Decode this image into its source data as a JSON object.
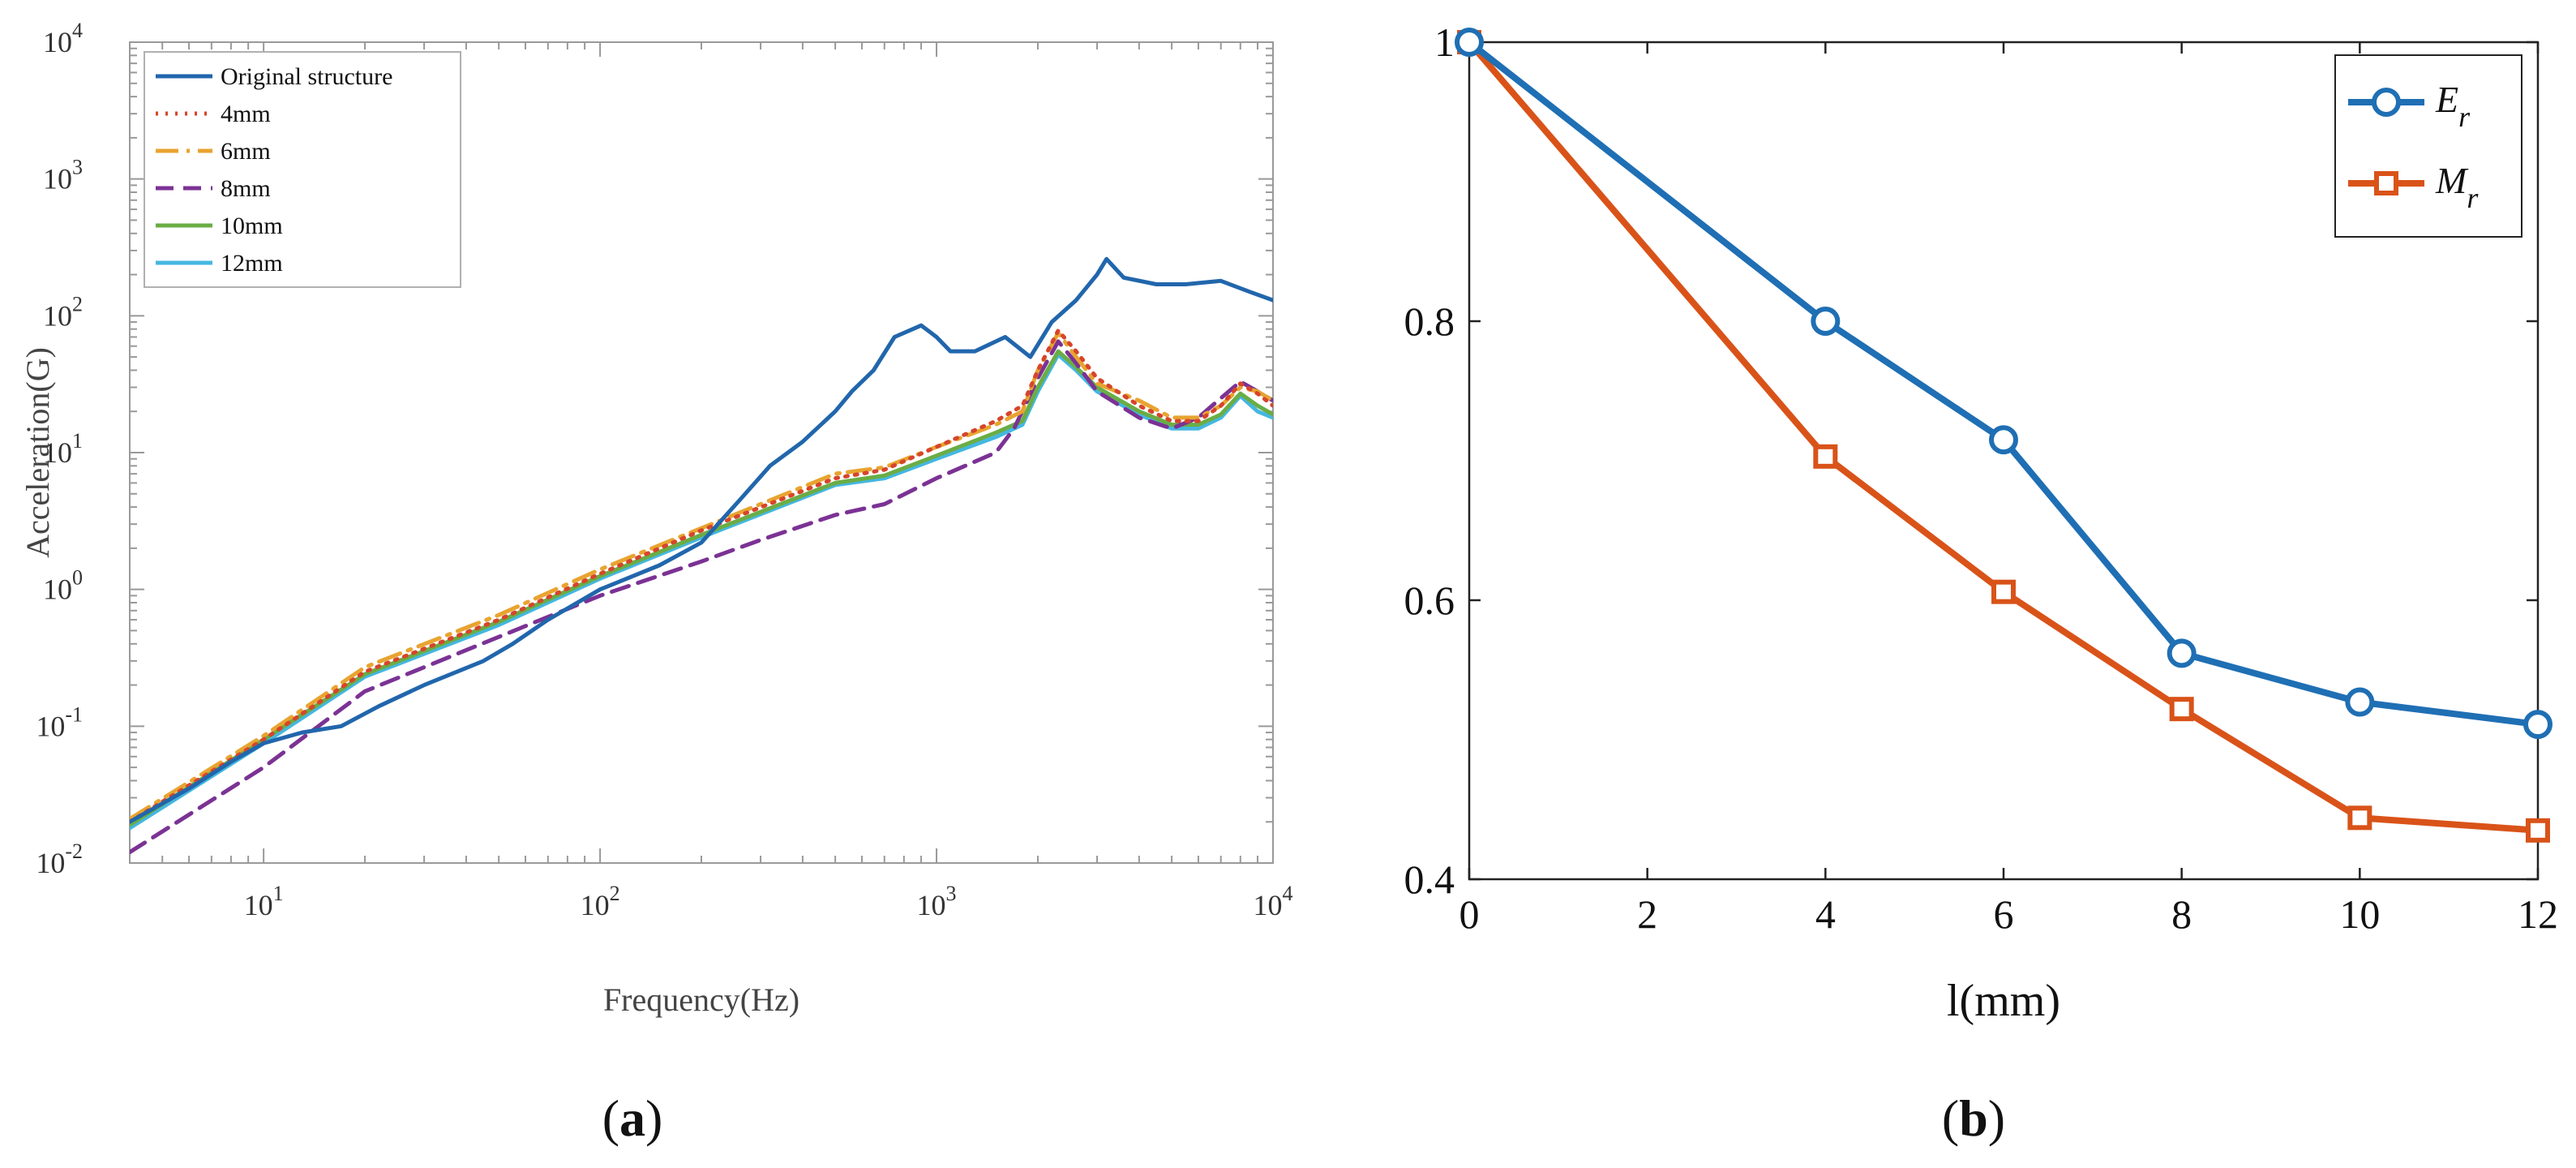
{
  "chart_data": [
    {
      "type": "line",
      "panel_label_open": "(",
      "panel_label_letter": "a",
      "panel_label_close": ")",
      "xlabel": "Frequency(Hz)",
      "ylabel": "Acceleration(G)",
      "xscale": "log",
      "yscale": "log",
      "xlim": [
        4,
        10000
      ],
      "ylim": [
        0.01,
        10000
      ],
      "x_ticks": [
        {
          "value": 10,
          "base": "10",
          "exp": "1"
        },
        {
          "value": 100,
          "base": "10",
          "exp": "2"
        },
        {
          "value": 1000,
          "base": "10",
          "exp": "3"
        },
        {
          "value": 10000,
          "base": "10",
          "exp": "4"
        }
      ],
      "y_ticks": [
        {
          "value": 0.01,
          "base": "10",
          "exp": "-2"
        },
        {
          "value": 0.1,
          "base": "10",
          "exp": "-1"
        },
        {
          "value": 1,
          "base": "10",
          "exp": "0"
        },
        {
          "value": 10,
          "base": "10",
          "exp": "1"
        },
        {
          "value": 100,
          "base": "10",
          "exp": "2"
        },
        {
          "value": 1000,
          "base": "10",
          "exp": "3"
        },
        {
          "value": 10000,
          "base": "10",
          "exp": "4"
        }
      ],
      "legend_position": "top-left",
      "series": [
        {
          "name": "Original structure",
          "color": "#2166ac",
          "dash": "solid",
          "x": [
            4,
            6,
            8,
            10,
            13,
            17,
            22,
            30,
            45,
            55,
            70,
            100,
            150,
            200,
            260,
            320,
            400,
            500,
            560,
            650,
            750,
            900,
            1000,
            1100,
            1300,
            1600,
            1900,
            2200,
            2600,
            3000,
            3200,
            3600,
            4500,
            5500,
            7000,
            8500,
            10000
          ],
          "y": [
            0.02,
            0.035,
            0.055,
            0.075,
            0.09,
            0.1,
            0.14,
            0.2,
            0.3,
            0.4,
            0.6,
            1.0,
            1.5,
            2.2,
            4.5,
            8,
            12,
            20,
            28,
            40,
            70,
            85,
            70,
            55,
            55,
            70,
            50,
            90,
            130,
            200,
            260,
            190,
            170,
            170,
            180,
            150,
            130
          ]
        },
        {
          "name": "4mm",
          "color": "#d6452b",
          "dash": "dot",
          "x": [
            4,
            10,
            20,
            50,
            100,
            200,
            500,
            700,
            1000,
            1500,
            1800,
            2000,
            2300,
            2600,
            3000,
            4000,
            5000,
            6000,
            7000,
            8000,
            9000,
            10000
          ],
          "y": [
            0.02,
            0.08,
            0.25,
            0.6,
            1.3,
            2.7,
            6.5,
            7.5,
            11,
            17,
            22,
            40,
            78,
            55,
            35,
            22,
            17,
            17,
            22,
            32,
            27,
            22
          ]
        },
        {
          "name": "6mm",
          "color": "#e8a430",
          "dash": "dashdot",
          "x": [
            4,
            10,
            20,
            50,
            100,
            200,
            500,
            700,
            1000,
            1500,
            1800,
            2000,
            2300,
            2600,
            3000,
            4000,
            5000,
            6000,
            7000,
            8000,
            9000,
            10000
          ],
          "y": [
            0.021,
            0.085,
            0.27,
            0.65,
            1.4,
            2.8,
            7,
            7.8,
            11,
            16,
            20,
            40,
            75,
            50,
            32,
            24,
            18,
            18,
            22,
            30,
            28,
            24
          ]
        },
        {
          "name": "8mm",
          "color": "#7b3294",
          "dash": "dash",
          "x": [
            4,
            10,
            20,
            50,
            100,
            200,
            300,
            500,
            700,
            1000,
            1500,
            1700,
            2000,
            2300,
            2600,
            3000,
            4000,
            5000,
            6000,
            7000,
            8000,
            9000,
            10000
          ],
          "y": [
            0.012,
            0.05,
            0.18,
            0.45,
            0.9,
            1.6,
            2.3,
            3.5,
            4.2,
            6.5,
            10,
            15,
            35,
            65,
            45,
            28,
            18,
            15,
            18,
            25,
            33,
            28,
            24
          ]
        },
        {
          "name": "10mm",
          "color": "#6aad45",
          "dash": "solid",
          "x": [
            4,
            10,
            20,
            50,
            100,
            200,
            500,
            700,
            1000,
            1500,
            1800,
            2000,
            2300,
            2600,
            3000,
            4000,
            5000,
            6000,
            7000,
            8000,
            9000,
            10000
          ],
          "y": [
            0.019,
            0.08,
            0.24,
            0.58,
            1.25,
            2.5,
            6,
            6.8,
            9.5,
            14,
            17,
            30,
            55,
            42,
            30,
            20,
            16,
            16,
            19,
            27,
            22,
            19
          ]
        },
        {
          "name": "12mm",
          "color": "#45b7e0",
          "dash": "solid",
          "x": [
            4,
            10,
            20,
            50,
            100,
            200,
            500,
            700,
            1000,
            1500,
            1800,
            2000,
            2300,
            2600,
            3000,
            4000,
            5000,
            6000,
            7000,
            8000,
            9000,
            10000
          ],
          "y": [
            0.018,
            0.075,
            0.23,
            0.55,
            1.2,
            2.4,
            5.8,
            6.5,
            9,
            13,
            16,
            28,
            52,
            40,
            28,
            19,
            15,
            15,
            18,
            26,
            20,
            18
          ]
        }
      ]
    },
    {
      "type": "line",
      "panel_label_open": "(",
      "panel_label_letter": "b",
      "panel_label_close": ")",
      "xlabel": "l(mm)",
      "ylabel": "",
      "xlim": [
        0,
        12
      ],
      "ylim": [
        0.4,
        1.0
      ],
      "x_ticks": [
        "0",
        "2",
        "4",
        "6",
        "8",
        "10",
        "12"
      ],
      "y_ticks": [
        "0.4",
        "0.6",
        "0.8",
        "1"
      ],
      "x_tick_values": [
        0,
        2,
        4,
        6,
        8,
        10,
        12
      ],
      "y_tick_values": [
        0.4,
        0.6,
        0.8,
        1.0
      ],
      "legend_position": "top-right",
      "x": [
        0,
        4,
        6,
        8,
        10,
        12
      ],
      "series": [
        {
          "name": "E",
          "subscript": "r",
          "color": "#1f6fb4",
          "marker": "circle",
          "values": [
            1.0,
            0.8,
            0.715,
            0.562,
            0.527,
            0.511
          ]
        },
        {
          "name": "M",
          "subscript": "r",
          "color": "#d95319",
          "marker": "square",
          "values": [
            1.0,
            0.703,
            0.606,
            0.522,
            0.444,
            0.435
          ]
        }
      ]
    }
  ]
}
